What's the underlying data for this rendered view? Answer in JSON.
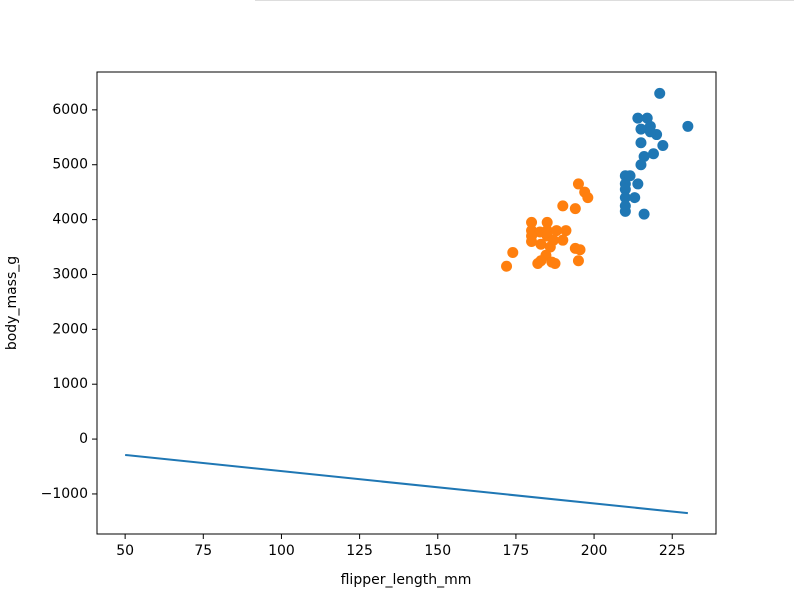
{
  "chart_data": {
    "type": "scatter",
    "x_label": "flipper_length_mm",
    "y_label": "body_mass_g",
    "xlim": [
      41,
      239
    ],
    "ylim": [
      -1730,
      6690
    ],
    "xticks": [
      50,
      75,
      100,
      125,
      150,
      175,
      200,
      225
    ],
    "yticks": [
      {
        "value": -1000,
        "label": "−1000"
      },
      0,
      1000,
      2000,
      3000,
      4000,
      5000,
      6000
    ],
    "grid": false,
    "series": [
      {
        "type": "scatter",
        "color": "#1f77b4",
        "x": [
          221,
          230,
          214,
          217,
          218,
          215,
          220,
          222,
          219,
          216,
          215,
          210,
          211.5,
          210,
          214,
          210,
          210,
          213,
          210,
          210,
          216,
          215,
          218
        ],
        "values": [
          6300,
          5700,
          5850,
          5850,
          5700,
          5650,
          5550,
          5350,
          5200,
          5150,
          5000,
          4800,
          4800,
          4650,
          4650,
          4550,
          4400,
          4400,
          4250,
          4150,
          4100,
          5400,
          5600
        ]
      },
      {
        "type": "scatter",
        "color": "#ff7f0e",
        "x": [
          195,
          197,
          198,
          190,
          194,
          180,
          185,
          180,
          182.7,
          185,
          188,
          191,
          180,
          185,
          187,
          180,
          190,
          183,
          186,
          194,
          195.5,
          174,
          184.6,
          183,
          186.5,
          195,
          182,
          172,
          187.5
        ],
        "values": [
          4650,
          4500,
          4400,
          4250,
          4200,
          3950,
          3950,
          3800,
          3775,
          3800,
          3800,
          3800,
          3700,
          3700,
          3625,
          3600,
          3625,
          3550,
          3500,
          3475,
          3450,
          3400,
          3350,
          3250,
          3225,
          3250,
          3200,
          3150,
          3200
        ]
      },
      {
        "type": "line",
        "color": "#1f77b4",
        "x": [
          50,
          230
        ],
        "values": [
          -290,
          -1350
        ]
      }
    ]
  }
}
